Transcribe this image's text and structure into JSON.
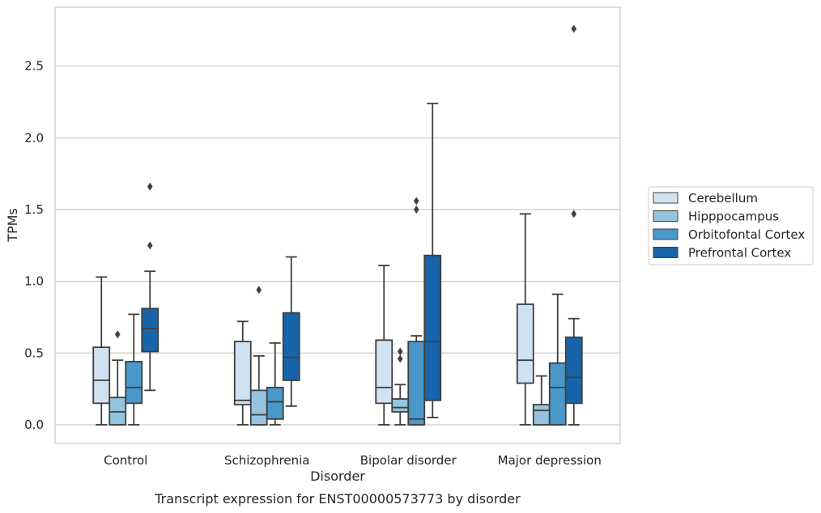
{
  "chart_data": {
    "type": "box",
    "xlabel": "Disorder",
    "ylabel": "TPMs",
    "caption": "Transcript expression for ENST00000573773 by disorder",
    "ylim": [
      -0.13,
      2.91
    ],
    "yticks": [
      0.0,
      0.5,
      1.0,
      1.5,
      2.0,
      2.5
    ],
    "ytick_labels": [
      "0.0",
      "0.5",
      "1.0",
      "1.5",
      "2.0",
      "2.5"
    ],
    "grid": "horizontal",
    "legend_position": "right",
    "categories": [
      "Control",
      "Schizophrenia",
      "Bipolar disorder",
      "Major depression"
    ],
    "series": [
      {
        "name": "Cerebellum",
        "color": "#d0e1f2",
        "boxes": [
          {
            "whisker_low": 0.0,
            "q1": 0.15,
            "median": 0.31,
            "q3": 0.54,
            "whisker_high": 1.03,
            "outliers": []
          },
          {
            "whisker_low": 0.0,
            "q1": 0.14,
            "median": 0.17,
            "q3": 0.58,
            "whisker_high": 0.72,
            "outliers": []
          },
          {
            "whisker_low": 0.0,
            "q1": 0.15,
            "median": 0.26,
            "q3": 0.59,
            "whisker_high": 1.11,
            "outliers": []
          },
          {
            "whisker_low": 0.0,
            "q1": 0.29,
            "median": 0.45,
            "q3": 0.84,
            "whisker_high": 1.47,
            "outliers": []
          }
        ]
      },
      {
        "name": "Hipppocampus",
        "color": "#94c4df",
        "boxes": [
          {
            "whisker_low": 0.0,
            "q1": 0.0,
            "median": 0.09,
            "q3": 0.19,
            "whisker_high": 0.45,
            "outliers": [
              0.63
            ]
          },
          {
            "whisker_low": 0.0,
            "q1": 0.0,
            "median": 0.07,
            "q3": 0.24,
            "whisker_high": 0.48,
            "outliers": [
              0.94
            ]
          },
          {
            "whisker_low": 0.0,
            "q1": 0.09,
            "median": 0.12,
            "q3": 0.18,
            "whisker_high": 0.28,
            "outliers": [
              0.46,
              0.51
            ]
          },
          {
            "whisker_low": 0.0,
            "q1": 0.0,
            "median": 0.1,
            "q3": 0.14,
            "whisker_high": 0.34,
            "outliers": []
          }
        ]
      },
      {
        "name": "Orbitofontal Cortex",
        "color": "#4a98c9",
        "boxes": [
          {
            "whisker_low": 0.0,
            "q1": 0.15,
            "median": 0.26,
            "q3": 0.44,
            "whisker_high": 0.77,
            "outliers": []
          },
          {
            "whisker_low": 0.0,
            "q1": 0.04,
            "median": 0.16,
            "q3": 0.26,
            "whisker_high": 0.57,
            "outliers": []
          },
          {
            "whisker_low": 0.0,
            "q1": 0.0,
            "median": 0.04,
            "q3": 0.58,
            "whisker_high": 0.62,
            "outliers": [
              1.5,
              1.56
            ]
          },
          {
            "whisker_low": 0.0,
            "q1": 0.0,
            "median": 0.26,
            "q3": 0.43,
            "whisker_high": 0.91,
            "outliers": []
          }
        ]
      },
      {
        "name": "Prefrontal Cortex",
        "color": "#1764ab",
        "boxes": [
          {
            "whisker_low": 0.24,
            "q1": 0.51,
            "median": 0.67,
            "q3": 0.81,
            "whisker_high": 1.07,
            "outliers": [
              1.25,
              1.66
            ]
          },
          {
            "whisker_low": 0.13,
            "q1": 0.31,
            "median": 0.47,
            "q3": 0.78,
            "whisker_high": 1.17,
            "outliers": []
          },
          {
            "whisker_low": 0.05,
            "q1": 0.17,
            "median": 0.58,
            "q3": 1.18,
            "whisker_high": 2.24,
            "outliers": []
          },
          {
            "whisker_low": 0.0,
            "q1": 0.15,
            "median": 0.33,
            "q3": 0.61,
            "whisker_high": 0.74,
            "outliers": [
              1.47,
              2.76
            ]
          }
        ]
      }
    ]
  }
}
